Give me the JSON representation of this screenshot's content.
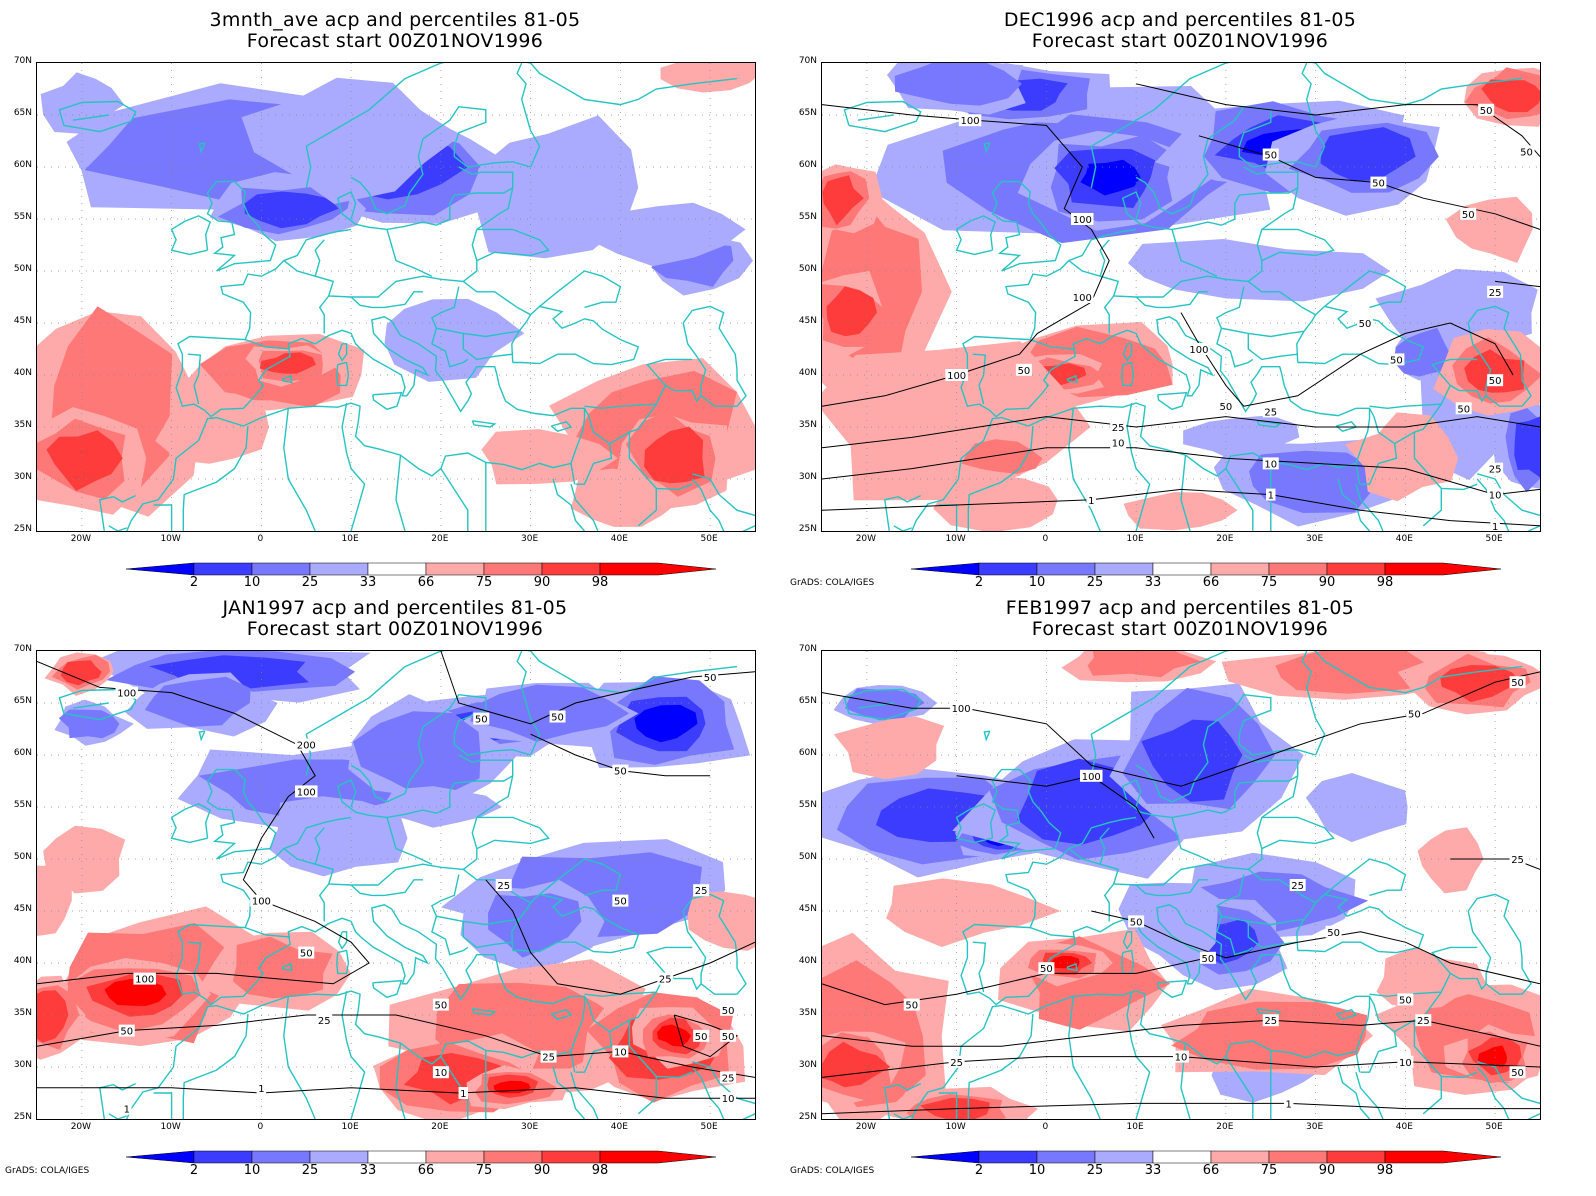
{
  "colors": {
    "blue_levels": [
      "#0000ff",
      "#3c3cff",
      "#7878ff",
      "#aaaaff"
    ],
    "red_levels": [
      "#ffaaaa",
      "#ff7878",
      "#ff3c3c",
      "#ff0000"
    ],
    "coast": "#27c3c3",
    "contour": "#000000"
  },
  "colorbar": {
    "labels": [
      "2",
      "10",
      "25",
      "33",
      "66",
      "75",
      "90",
      "98"
    ]
  },
  "axes": {
    "lat_labels": [
      "70N",
      "65N",
      "60N",
      "55N",
      "50N",
      "45N",
      "40N",
      "35N",
      "30N",
      "25N"
    ],
    "lon_labels": [
      "20W",
      "10W",
      "0",
      "10E",
      "20E",
      "30E",
      "40E",
      "50E"
    ],
    "lon_range": [
      -25,
      55
    ],
    "lat_range": [
      25,
      70
    ]
  },
  "credit": "GrADS: COLA/IGES",
  "panels": [
    {
      "title": "3mnth_ave acp and percentiles 81-05",
      "subtitle": "Forecast start 00Z01NOV1996",
      "show_credit": false,
      "contours": []
    },
    {
      "title": "DEC1996 acp and percentiles 81-05",
      "subtitle": "Forecast start 00Z01NOV1996",
      "show_credit": true,
      "contours": [
        {
          "label": "100",
          "lon": -8.5,
          "lat": 64.5
        },
        {
          "label": "50",
          "lon": 49,
          "lat": 65.5
        },
        {
          "label": "50",
          "lon": 53.5,
          "lat": 61.5
        },
        {
          "label": "50",
          "lon": 25,
          "lat": 61.2
        },
        {
          "label": "50",
          "lon": 37,
          "lat": 58.5
        },
        {
          "label": "100",
          "lon": 4,
          "lat": 55
        },
        {
          "label": "50",
          "lon": 47,
          "lat": 55.5
        },
        {
          "label": "25",
          "lon": 50,
          "lat": 48
        },
        {
          "label": "100",
          "lon": 4,
          "lat": 47.5
        },
        {
          "label": "50",
          "lon": 35.5,
          "lat": 45
        },
        {
          "label": "100",
          "lon": 17,
          "lat": 42.5
        },
        {
          "label": "50",
          "lon": 39,
          "lat": 41.5
        },
        {
          "label": "100",
          "lon": -10,
          "lat": 40
        },
        {
          "label": "50",
          "lon": -2.5,
          "lat": 40.5
        },
        {
          "label": "50",
          "lon": 50,
          "lat": 39.5
        },
        {
          "label": "50",
          "lon": 20,
          "lat": 37
        },
        {
          "label": "25",
          "lon": 25,
          "lat": 36.5
        },
        {
          "label": "50",
          "lon": 46.5,
          "lat": 36.8
        },
        {
          "label": "25",
          "lon": 8,
          "lat": 35
        },
        {
          "label": "10",
          "lon": 8,
          "lat": 33.5
        },
        {
          "label": "10",
          "lon": 25,
          "lat": 31.5
        },
        {
          "label": "25",
          "lon": 50,
          "lat": 31
        },
        {
          "label": "1",
          "lon": 25,
          "lat": 28.5
        },
        {
          "label": "1",
          "lon": 5,
          "lat": 28
        },
        {
          "label": "10",
          "lon": 50,
          "lat": 28.5
        },
        {
          "label": "1",
          "lon": 50,
          "lat": 25.5
        }
      ]
    },
    {
      "title": "JAN1997 acp and percentiles 81-05",
      "subtitle": "Forecast start 00Z01NOV1996",
      "show_credit": true,
      "contours": [
        {
          "label": "100",
          "lon": -15,
          "lat": 66
        },
        {
          "label": "50",
          "lon": 50,
          "lat": 67.5
        },
        {
          "label": "50",
          "lon": 24.5,
          "lat": 63.5
        },
        {
          "label": "50",
          "lon": 33,
          "lat": 63.7
        },
        {
          "label": "200",
          "lon": 5,
          "lat": 61
        },
        {
          "label": "50",
          "lon": 40,
          "lat": 58.5
        },
        {
          "label": "100",
          "lon": 5,
          "lat": 56.5
        },
        {
          "label": "25",
          "lon": 27,
          "lat": 47.5
        },
        {
          "label": "25",
          "lon": 49,
          "lat": 47
        },
        {
          "label": "50",
          "lon": 40,
          "lat": 46
        },
        {
          "label": "100",
          "lon": 0,
          "lat": 46
        },
        {
          "label": "50",
          "lon": 5,
          "lat": 41
        },
        {
          "label": "100",
          "lon": -13,
          "lat": 38.5
        },
        {
          "label": "25",
          "lon": 45,
          "lat": 38.5
        },
        {
          "label": "50",
          "lon": 20,
          "lat": 36
        },
        {
          "label": "50",
          "lon": 52,
          "lat": 35.5
        },
        {
          "label": "25",
          "lon": 7,
          "lat": 34.5
        },
        {
          "label": "50",
          "lon": -15,
          "lat": 33.5
        },
        {
          "label": "50",
          "lon": 49,
          "lat": 33
        },
        {
          "label": "50",
          "lon": 52,
          "lat": 33
        },
        {
          "label": "10",
          "lon": 40,
          "lat": 31.5
        },
        {
          "label": "25",
          "lon": 32,
          "lat": 31
        },
        {
          "label": "10",
          "lon": 20,
          "lat": 29.5
        },
        {
          "label": "25",
          "lon": 52,
          "lat": 29
        },
        {
          "label": "1",
          "lon": 0,
          "lat": 28
        },
        {
          "label": "1",
          "lon": 22.5,
          "lat": 27.5
        },
        {
          "label": "10",
          "lon": 52,
          "lat": 27
        },
        {
          "label": "1",
          "lon": -15,
          "lat": 26
        }
      ]
    },
    {
      "title": "FEB1997 acp and percentiles 81-05",
      "subtitle": "Forecast start 00Z01NOV1996",
      "show_credit": true,
      "contours": [
        {
          "label": "50",
          "lon": 52.5,
          "lat": 67
        },
        {
          "label": "50",
          "lon": 41,
          "lat": 64
        },
        {
          "label": "100",
          "lon": -9.5,
          "lat": 64.5
        },
        {
          "label": "100",
          "lon": 5,
          "lat": 58
        },
        {
          "label": "25",
          "lon": 52.5,
          "lat": 50
        },
        {
          "label": "25",
          "lon": 28,
          "lat": 47.5
        },
        {
          "label": "50",
          "lon": 10,
          "lat": 44
        },
        {
          "label": "50",
          "lon": 32,
          "lat": 43
        },
        {
          "label": "50",
          "lon": 0,
          "lat": 39.5
        },
        {
          "label": "50",
          "lon": 18,
          "lat": 40.5
        },
        {
          "label": "50",
          "lon": -15,
          "lat": 36
        },
        {
          "label": "50",
          "lon": 40,
          "lat": 36.5
        },
        {
          "label": "25",
          "lon": 25,
          "lat": 34.5
        },
        {
          "label": "25",
          "lon": 42,
          "lat": 34.5
        },
        {
          "label": "25",
          "lon": -10,
          "lat": 30.5
        },
        {
          "label": "10",
          "lon": 15,
          "lat": 31
        },
        {
          "label": "10",
          "lon": 40,
          "lat": 30.5
        },
        {
          "label": "50",
          "lon": 52.5,
          "lat": 29.5
        },
        {
          "label": "1",
          "lon": 27,
          "lat": 26.5
        }
      ]
    }
  ]
}
